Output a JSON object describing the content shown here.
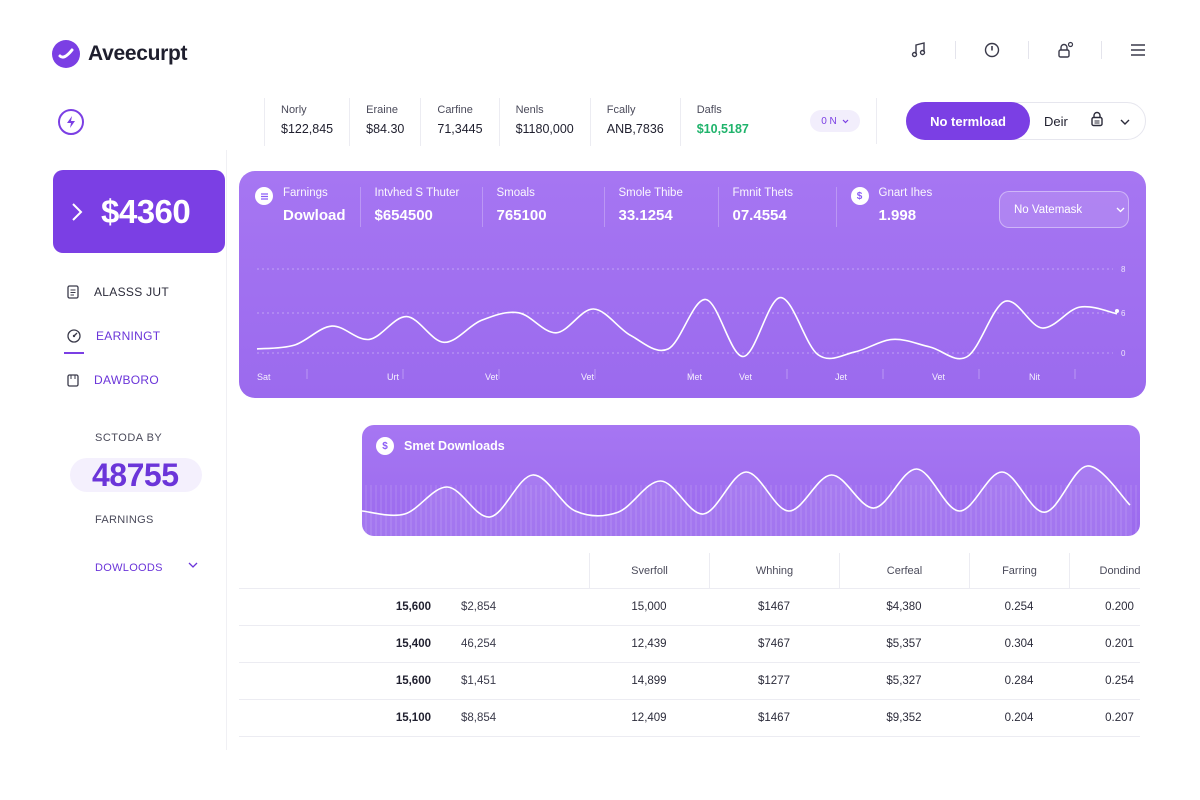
{
  "app": {
    "name": "Aveecurpt"
  },
  "header": {
    "icons": [
      "music-icon",
      "clock-icon",
      "user-lock-icon",
      "menu-icon"
    ]
  },
  "stats": [
    {
      "label": "Norly",
      "value": "$122,845"
    },
    {
      "label": "Eraine",
      "value": "$84.30"
    },
    {
      "label": "Carfine",
      "value": "71,3445"
    },
    {
      "label": "Nenls",
      "value": "$1180,000"
    },
    {
      "label": "Fcally",
      "value": "ANB,7836"
    },
    {
      "label": "Dafls",
      "value": "$10,5187"
    }
  ],
  "mini_select": {
    "value": "0 N"
  },
  "actions": {
    "primary_label": "No termload",
    "secondary_label": "Deir"
  },
  "sidebar": {
    "card_amount": "$4360",
    "nav": [
      {
        "label": "ALASSS JUT",
        "icon": "document-icon"
      },
      {
        "label": "EARNINGT",
        "icon": "gauge-icon"
      },
      {
        "label": "DAWBORO",
        "icon": "folder-icon"
      }
    ],
    "caption": "SCTODA BY",
    "number": "48755",
    "caption2": "FARNINGS",
    "dropdown": "DOWLOODS"
  },
  "main_chart": {
    "columns": [
      {
        "label": "Farnings",
        "value": "Dowload"
      },
      {
        "label": "Intvhed S Thuter",
        "value": "$654500"
      },
      {
        "label": "Smoals",
        "value": "765100"
      },
      {
        "label": "Smole Thibe",
        "value": "33.1254"
      },
      {
        "label": "Fmnit Thets",
        "value": "07.4554"
      },
      {
        "label": "Gnart Ihes",
        "value": "1.998"
      }
    ],
    "select": "No Vatemask",
    "x_labels": [
      "Sat",
      "Urt",
      "Vet",
      "Vet",
      "Met",
      "Vet",
      "Jet",
      "Vet",
      "Nit"
    ],
    "y_labels": [
      "8",
      "6",
      "0"
    ],
    "series": [
      0.18,
      0.22,
      0.42,
      0.28,
      0.52,
      0.25,
      0.48,
      0.56,
      0.35,
      0.6,
      0.32,
      0.18,
      0.7,
      0.1,
      0.72,
      0.12,
      0.15,
      0.28,
      0.2,
      0.1,
      0.68,
      0.4,
      0.62,
      0.55
    ],
    "colors": {
      "accent": "#7b3fe4",
      "card": "#a676f2"
    }
  },
  "second_chart": {
    "title": "Smet Downloads",
    "series": [
      0.2,
      0.15,
      0.6,
      0.1,
      0.8,
      0.2,
      0.18,
      0.7,
      0.15,
      0.85,
      0.2,
      0.8,
      0.25,
      0.9,
      0.2,
      0.85,
      0.18,
      0.95,
      0.3
    ]
  },
  "table": {
    "headers": [
      "",
      "",
      "Sverfoll",
      "Whhing",
      "Cerfeal",
      "Farring",
      "Dondind"
    ],
    "rows": [
      [
        "15,600",
        "$2,854",
        "15,000",
        "$1467",
        "$4,380",
        "0.254",
        "0.200"
      ],
      [
        "15,400",
        "46,254",
        "12,439",
        "$7467",
        "$5,357",
        "0.304",
        "0.201"
      ],
      [
        "15,600",
        "$1,451",
        "14,899",
        "$1277",
        "$5,327",
        "0.284",
        "0.254"
      ],
      [
        "15,100",
        "$8,854",
        "12,409",
        "$1467",
        "$9,352",
        "0.204",
        "0.207"
      ]
    ]
  }
}
